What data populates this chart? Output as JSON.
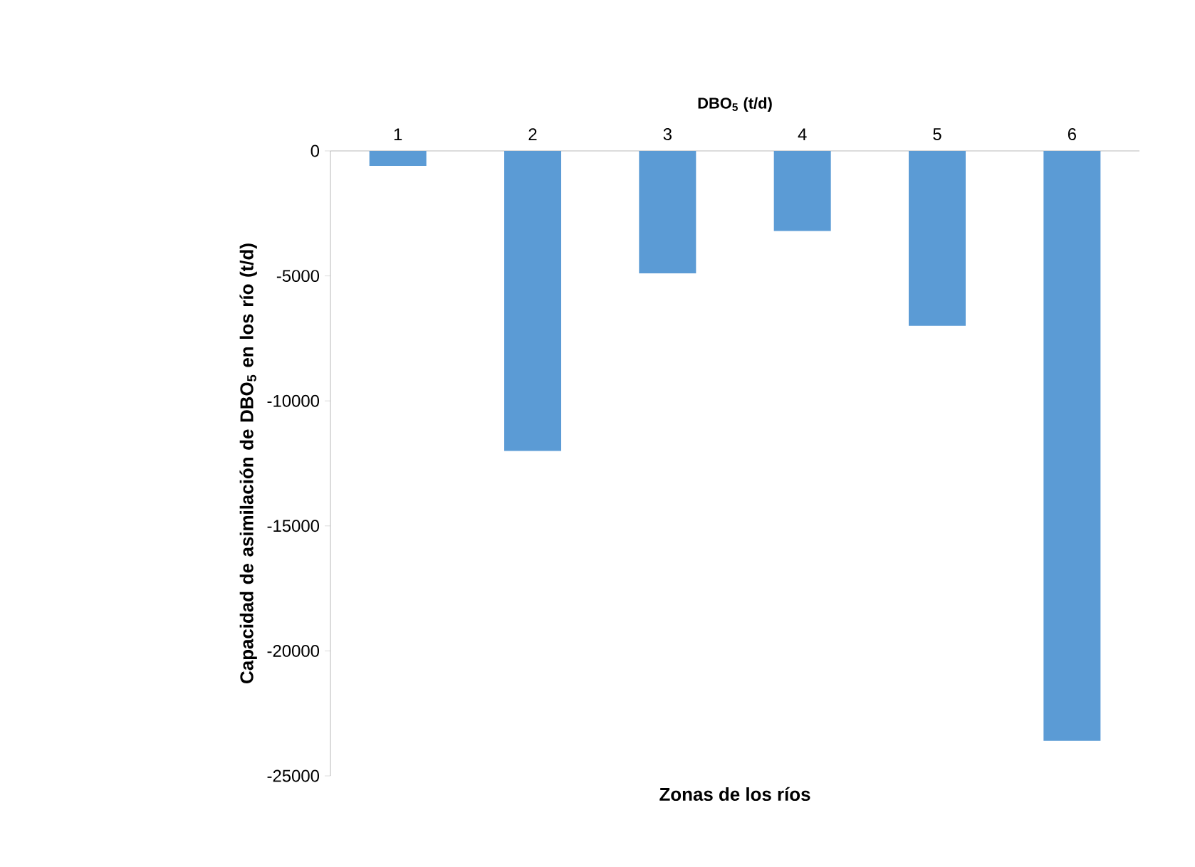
{
  "chart_data": {
    "type": "bar",
    "title": "DBO$_{5}$ (t/d)",
    "xlabel": "Zonas de los ríos",
    "ylabel": "Capacidad de asimilación de DBO$_{5}$ en los río (t/d)",
    "categories": [
      "1",
      "2",
      "3",
      "4",
      "5",
      "6"
    ],
    "values": [
      -600,
      -12000,
      -4900,
      -3200,
      -7000,
      -23600
    ],
    "color": "#5b9bd5",
    "ylim": [
      -25000,
      0
    ],
    "yticks": [
      0,
      -5000,
      -10000,
      -15000,
      -20000,
      -25000
    ]
  }
}
